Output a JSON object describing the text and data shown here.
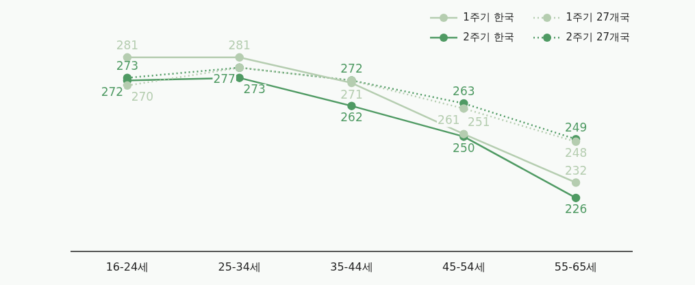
{
  "chart_data": {
    "type": "line",
    "categories": [
      "16-24세",
      "25-34세",
      "35-44세",
      "45-54세",
      "55-65세"
    ],
    "series": [
      {
        "name": "1주기 한국",
        "color": "#b5cdb0",
        "values": [
          281,
          281,
          271,
          251,
          232
        ],
        "value_labels": [
          "281",
          "281",
          "271",
          "251",
          "232"
        ]
      },
      {
        "name": "1주기 27개국",
        "color": "#b5cdb0",
        "line_style": "dotted",
        "values": [
          270,
          277,
          272,
          261,
          248
        ],
        "value_labels": [
          "270",
          null,
          null,
          "261",
          "248"
        ]
      },
      {
        "name": "2주기 한국",
        "color": "#4f9a63",
        "values": [
          272,
          273,
          262,
          250,
          226
        ],
        "value_labels": [
          "272",
          "273",
          "262",
          "250",
          "226"
        ]
      },
      {
        "name": "2주기 27개국",
        "color": "#4f9a63",
        "line_style": "dotted",
        "values": [
          273,
          277,
          272,
          263,
          249
        ],
        "value_labels": [
          "273",
          "277",
          "272",
          "263",
          "249"
        ]
      }
    ],
    "marker": "circle",
    "legend": "top right",
    "grid": false
  }
}
